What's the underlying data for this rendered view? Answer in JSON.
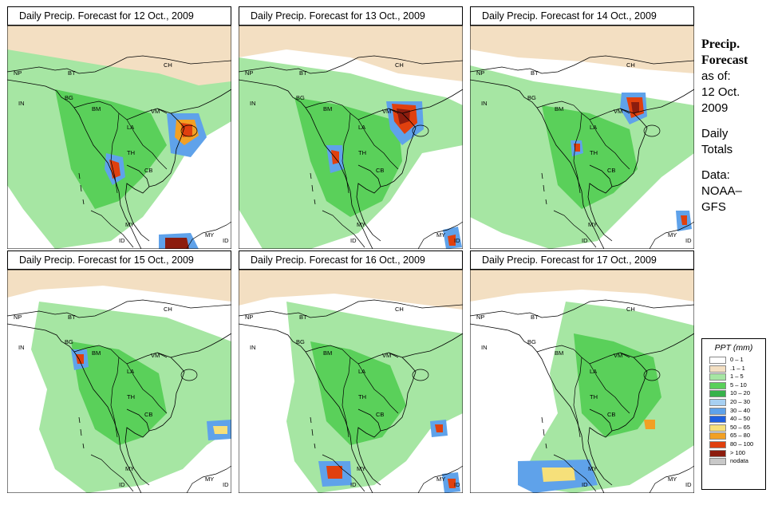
{
  "panels": [
    {
      "title": "Daily Precip. Forecast for  12 Oct., 2009"
    },
    {
      "title": "Daily Precip. Forecast for  13 Oct., 2009"
    },
    {
      "title": "Daily Precip. Forecast for  14 Oct., 2009"
    },
    {
      "title": "Daily Precip. Forecast for  15 Oct., 2009"
    },
    {
      "title": "Daily Precip. Forecast for  16 Oct., 2009"
    },
    {
      "title": "Daily Precip. Forecast for  17 Oct., 2009"
    }
  ],
  "country_labels": {
    "NP": "NP",
    "BT": "BT",
    "BG": "BG",
    "IN": "IN",
    "CH": "CH",
    "BM": "BM",
    "VM": "VM",
    "LA": "LA",
    "TH": "TH",
    "CB": "CB",
    "MY": "MY",
    "ID": "ID",
    "CH2": "CH"
  },
  "sidebar": {
    "title_line1": "Precip.",
    "title_line2": "Forecast",
    "asof_line1": "as of:",
    "asof_line2": "12 Oct.",
    "asof_line3": "2009",
    "totals_line1": "Daily",
    "totals_line2": "Totals",
    "data_line1": "Data:",
    "data_line2": "NOAA–",
    "data_line3": "GFS"
  },
  "legend": {
    "title": "PPT (mm)",
    "items": [
      {
        "label": "0 – 1",
        "color": "#ffffff"
      },
      {
        "label": ".1 – 1",
        "color": "#f3dfc2"
      },
      {
        "label": "1 – 5",
        "color": "#a6e6a3"
      },
      {
        "label": "5 – 10",
        "color": "#5ad05a"
      },
      {
        "label": "10 – 20",
        "color": "#36b24a"
      },
      {
        "label": "20 – 30",
        "color": "#a7d0f2"
      },
      {
        "label": "30 – 40",
        "color": "#5fa2ea"
      },
      {
        "label": "40 – 50",
        "color": "#1f5fe0"
      },
      {
        "label": "50 – 65",
        "color": "#f6e07a"
      },
      {
        "label": "65 – 80",
        "color": "#f2a024"
      },
      {
        "label": "80 – 100",
        "color": "#e0400e"
      },
      {
        "label": "> 100",
        "color": "#8c1c0e"
      },
      {
        "label": "nodata",
        "color": "#c8c8c8"
      }
    ]
  },
  "colors": {
    "white": "#ffffff",
    "beige": "#f3dfc2",
    "lightgreen": "#a6e6a3",
    "green": "#5ad05a",
    "darkgreen": "#36b24a",
    "lightblue": "#a7d0f2",
    "blue": "#5fa2ea",
    "darkblue": "#1f5fe0",
    "yellow": "#f6e07a",
    "orange": "#f2a024",
    "red": "#e0400e",
    "darkred": "#8c1c0e"
  }
}
